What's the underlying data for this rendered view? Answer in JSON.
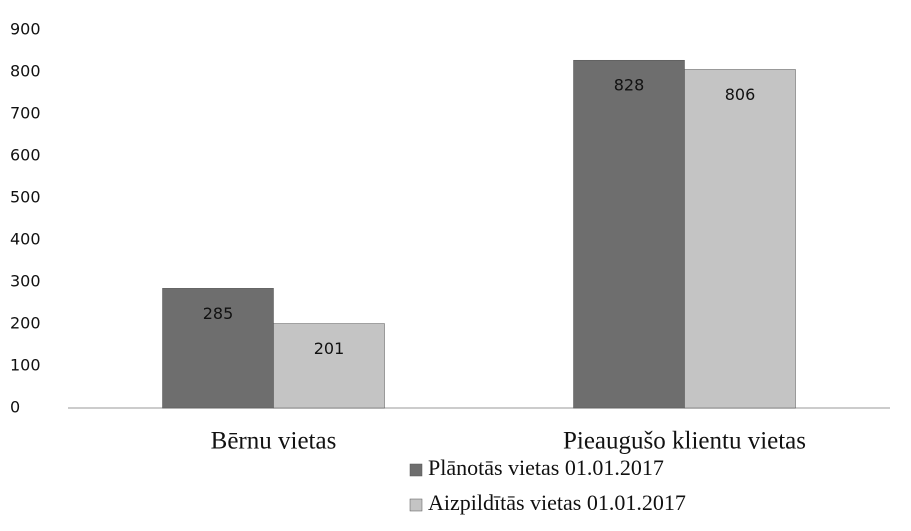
{
  "chart_data": {
    "type": "bar",
    "categories": [
      "Bērnu vietas",
      "Pieaugušo klientu vietas"
    ],
    "series": [
      {
        "name": "Plānotās vietas 01.01.2017",
        "color": "#6e6e6e",
        "values": [
          285,
          828
        ]
      },
      {
        "name": "Aizpildītās vietas 01.01.2017",
        "color": "#c4c4c4",
        "values": [
          201,
          806
        ]
      }
    ],
    "ylim": [
      0,
      900
    ],
    "yticks": [
      0,
      100,
      200,
      300,
      400,
      500,
      600,
      700,
      800,
      900
    ],
    "grid": false,
    "legend": "bottom"
  }
}
